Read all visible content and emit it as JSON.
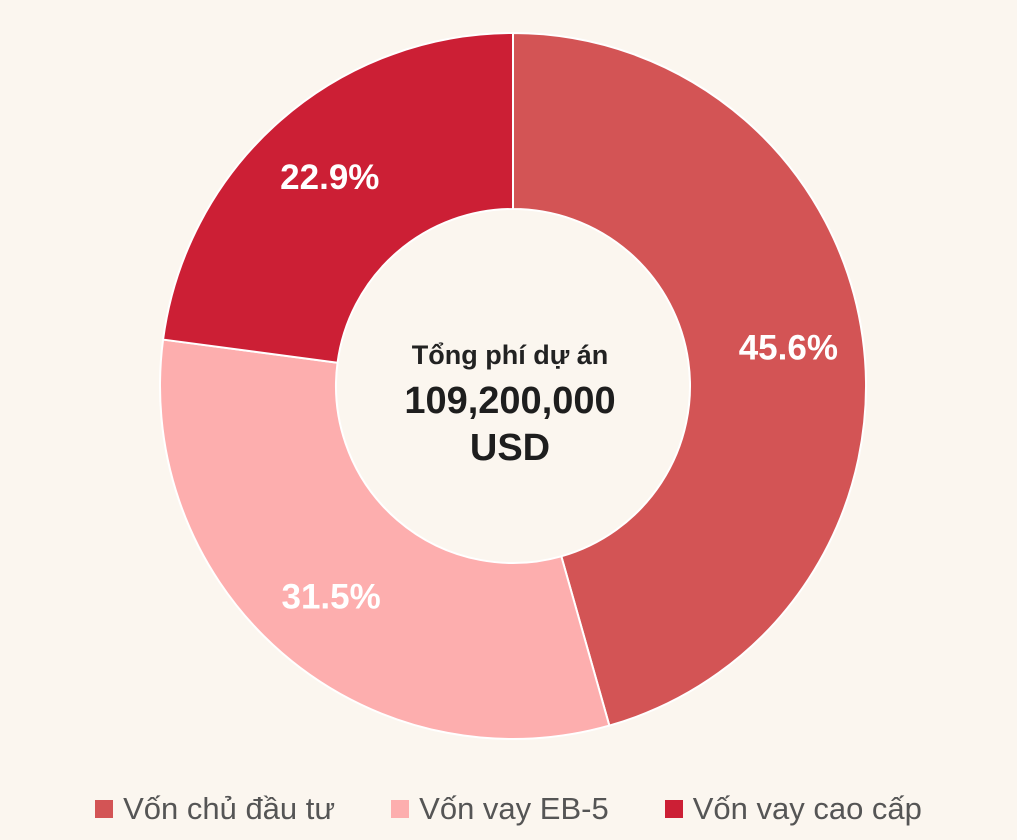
{
  "chart_data": {
    "type": "pie",
    "subtype": "donut",
    "center": {
      "title": "Tổng phí dự án",
      "value_line1": "109,200,000",
      "value_line2": "USD"
    },
    "slices": [
      {
        "name": "Vốn chủ đầu tư",
        "value": 45.6,
        "label": "45.6%",
        "color": "#d35455"
      },
      {
        "name": "Vốn vay EB-5",
        "value": 31.5,
        "label": "31.5%",
        "color": "#fdaeae"
      },
      {
        "name": "Vốn vay cao cấp",
        "value": 22.9,
        "label": "22.9%",
        "color": "#cc1f35"
      }
    ],
    "legend_position": "bottom"
  }
}
